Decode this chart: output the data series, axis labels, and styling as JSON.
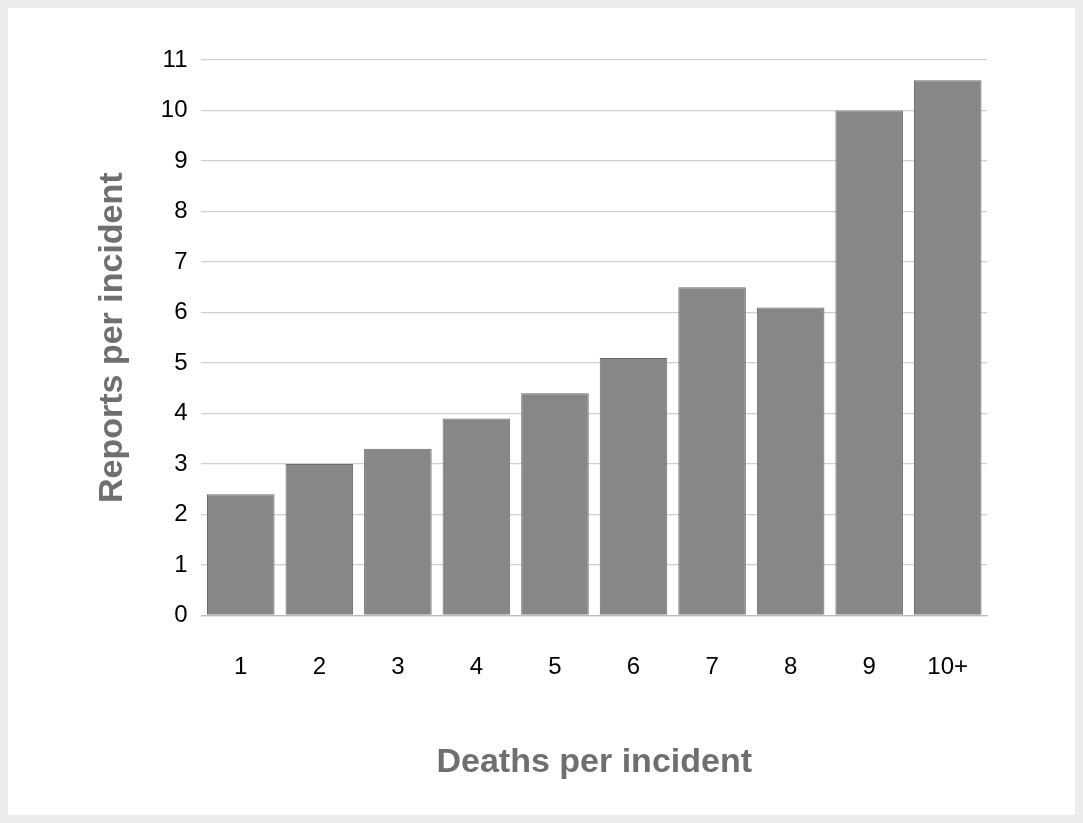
{
  "chart_data": {
    "type": "bar",
    "xlabel": "Deaths per incident",
    "ylabel": "Reports per incident",
    "categories": [
      "1",
      "2",
      "3",
      "4",
      "5",
      "6",
      "7",
      "8",
      "9",
      "10+"
    ],
    "values": [
      2.4,
      3.0,
      3.3,
      3.9,
      4.4,
      5.1,
      6.5,
      6.1,
      10.0,
      10.6
    ],
    "color": "#878787",
    "ylim": [
      0,
      11
    ],
    "yticks": [
      0,
      1,
      2,
      3,
      4,
      5,
      6,
      7,
      8,
      9,
      10,
      11
    ],
    "grid": "y",
    "legend": false
  }
}
